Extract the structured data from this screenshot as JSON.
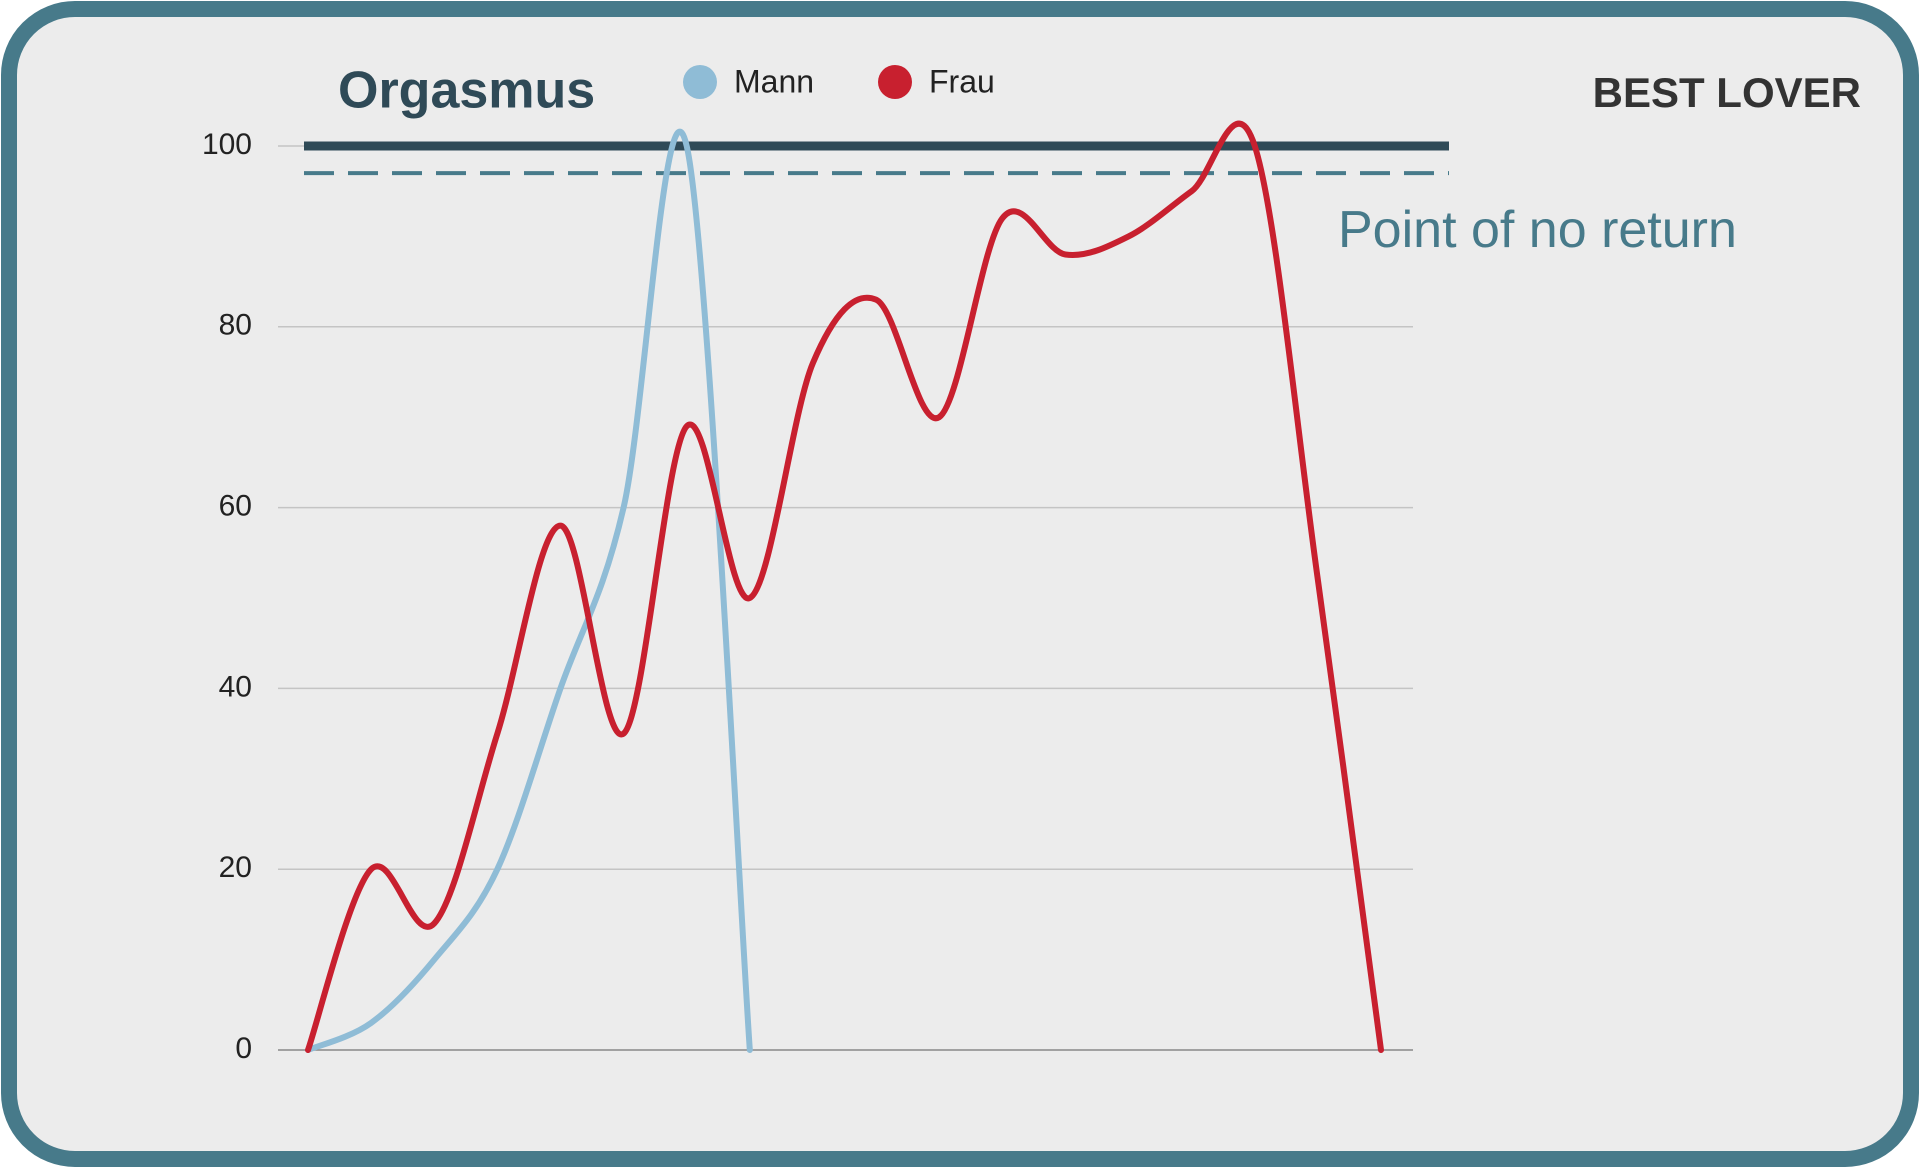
{
  "chart_data": {
    "type": "line",
    "title": "Orgasmus",
    "categories": [
      null,
      null,
      null,
      null,
      null,
      null,
      null,
      null,
      null,
      null,
      null,
      null,
      null,
      null,
      null,
      null,
      null,
      null
    ],
    "series": [
      {
        "name": "Mann",
        "color": "#8fbcd6",
        "values": [
          0,
          3,
          10,
          20,
          40,
          60,
          100,
          0,
          null,
          null,
          null,
          null,
          null,
          null,
          null,
          null,
          null,
          null
        ]
      },
      {
        "name": "Frau",
        "color": "#c8202f",
        "values": [
          0,
          20,
          14,
          35,
          58,
          35,
          69,
          50,
          76,
          83,
          70,
          92,
          88,
          90,
          95,
          100,
          52,
          0
        ]
      }
    ],
    "ylim": [
      0,
      100
    ],
    "yticks": [
      0,
      20,
      40,
      60,
      80,
      100
    ],
    "grid": true,
    "smooth": true,
    "legend": "top",
    "reference_lines": [
      {
        "value": 100,
        "style": "solid",
        "color": "#2f4a57"
      },
      {
        "value": 97,
        "style": "dashed",
        "color": "#477a8a",
        "label": "Point of no return"
      }
    ],
    "logo": "BEST LOVER"
  }
}
